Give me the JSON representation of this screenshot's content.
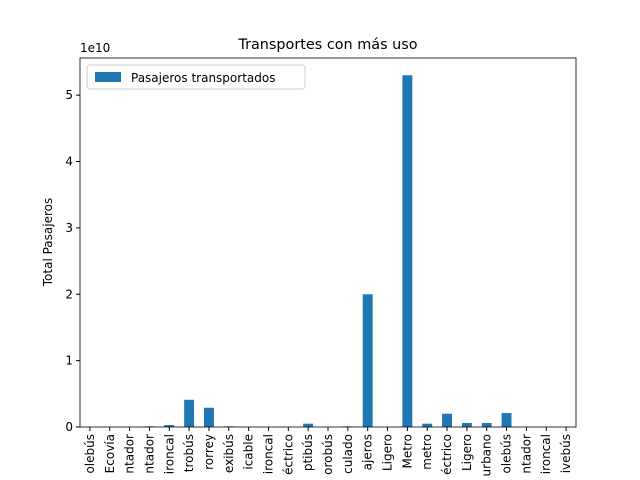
{
  "chart_data": {
    "type": "bar",
    "title": "Transportes con más uso",
    "ylabel": "Total Pasajeros",
    "offset_label": "1e10",
    "categories": [
      "olebús",
      "Ecovía",
      "ntador",
      "ntador",
      "ironcal",
      "trobús",
      "rorrey",
      "exibús",
      "icable",
      "ironcal",
      "éctrico",
      "ptibús",
      "orobús",
      "culado",
      "ajeros",
      "Ligero",
      "Metro",
      "metro",
      "éctrico",
      "Ligero",
      "urbano",
      "olebús",
      "ntador",
      "ironcal",
      "ivebús"
    ],
    "series": [
      {
        "name": "Pasajeros transportados",
        "color": "#1f77b4",
        "values": [
          0,
          0,
          0,
          0.01,
          0.03,
          0.41,
          0.29,
          0.01,
          0,
          0,
          0,
          0.05,
          0,
          0.01,
          2.0,
          0,
          5.3,
          0.05,
          0.2,
          0.06,
          0.06,
          0.21,
          0,
          0,
          0
        ]
      }
    ],
    "ylim": [
      0,
      5.56
    ],
    "yticks": [
      0,
      1,
      2,
      3,
      4,
      5
    ],
    "legend": "upper left"
  }
}
